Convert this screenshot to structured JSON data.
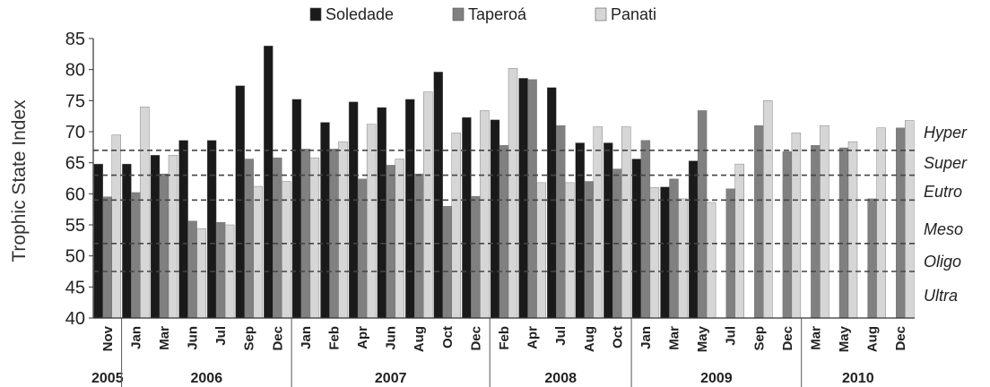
{
  "chart_data": {
    "type": "bar",
    "ylabel": "Trophic State Index",
    "ylim": [
      40,
      85
    ],
    "yticks": [
      40,
      45,
      50,
      55,
      60,
      65,
      70,
      75,
      80,
      85
    ],
    "legend_position": "top",
    "series": [
      {
        "name": "Soledade",
        "color": "#1a1a1a"
      },
      {
        "name": "Taperoá",
        "color": "#808080"
      },
      {
        "name": "Panati",
        "color": "#d6d6d6"
      }
    ],
    "categories": [
      {
        "label": "Nov",
        "year": "2005",
        "values": [
          64.8,
          59.5,
          69.5
        ]
      },
      {
        "label": "Jan",
        "year": "2006",
        "values": [
          64.8,
          60.2,
          74.0
        ]
      },
      {
        "label": "Mar",
        "year": "2006",
        "values": [
          66.2,
          63.2,
          66.2
        ]
      },
      {
        "label": "Jun",
        "year": "2006",
        "values": [
          68.6,
          55.6,
          54.4
        ]
      },
      {
        "label": "Jul",
        "year": "2006",
        "values": [
          68.6,
          55.4,
          55.0
        ]
      },
      {
        "label": "Sep",
        "year": "2006",
        "values": [
          77.4,
          65.6,
          61.2
        ]
      },
      {
        "label": "Dec",
        "year": "2006",
        "values": [
          83.8,
          65.8,
          62.0
        ]
      },
      {
        "label": "Jan",
        "year": "2007",
        "values": [
          75.2,
          67.2,
          65.8
        ]
      },
      {
        "label": "Feb",
        "year": "2007",
        "values": [
          71.5,
          67.2,
          68.4
        ]
      },
      {
        "label": "Apr",
        "year": "2007",
        "values": [
          74.8,
          62.4,
          71.2
        ]
      },
      {
        "label": "Jun",
        "year": "2007",
        "values": [
          73.9,
          64.6,
          65.6
        ]
      },
      {
        "label": "Aug",
        "year": "2007",
        "values": [
          75.2,
          63.2,
          76.4
        ]
      },
      {
        "label": "Oct",
        "year": "2007",
        "values": [
          79.6,
          58.0,
          69.8
        ]
      },
      {
        "label": "Dec",
        "year": "2007",
        "values": [
          72.3,
          59.6,
          73.4
        ]
      },
      {
        "label": "Feb",
        "year": "2008",
        "values": [
          71.9,
          67.8,
          80.2
        ]
      },
      {
        "label": "Apr",
        "year": "2008",
        "values": [
          78.6,
          78.4,
          61.8
        ]
      },
      {
        "label": "Jul",
        "year": "2008",
        "values": [
          77.1,
          71.0,
          61.8
        ]
      },
      {
        "label": "Aug",
        "year": "2008",
        "values": [
          68.2,
          62.0,
          70.8
        ]
      },
      {
        "label": "Oct",
        "year": "2008",
        "values": [
          68.2,
          64.0,
          70.8
        ]
      },
      {
        "label": "Jan",
        "year": "2009",
        "values": [
          65.6,
          68.6,
          61.0
        ]
      },
      {
        "label": "Mar",
        "year": "2009",
        "values": [
          61.1,
          62.4,
          59.2
        ]
      },
      {
        "label": "May",
        "year": "2009",
        "values": [
          65.3,
          73.4,
          58.6
        ]
      },
      {
        "label": "Jul",
        "year": "2009",
        "values": [
          null,
          60.8,
          64.8
        ]
      },
      {
        "label": "Sep",
        "year": "2009",
        "values": [
          null,
          71.0,
          75.0
        ]
      },
      {
        "label": "Dec",
        "year": "2009",
        "values": [
          null,
          66.8,
          69.8
        ]
      },
      {
        "label": "Mar",
        "year": "2010",
        "values": [
          null,
          67.8,
          71.0
        ]
      },
      {
        "label": "May",
        "year": "2010",
        "values": [
          null,
          67.4,
          68.4
        ]
      },
      {
        "label": "Aug",
        "year": "2010",
        "values": [
          null,
          59.2,
          70.6
        ]
      },
      {
        "label": "Dec",
        "year": "2010",
        "values": [
          null,
          70.6,
          71.8
        ]
      }
    ],
    "years": [
      {
        "label": "2005",
        "count": 1
      },
      {
        "label": "2006",
        "count": 6
      },
      {
        "label": "2007",
        "count": 7
      },
      {
        "label": "2008",
        "count": 5
      },
      {
        "label": "2009",
        "count": 6
      },
      {
        "label": "2010",
        "count": 4
      }
    ],
    "thresholds": [
      {
        "label": "Hyper",
        "value": 67.0
      },
      {
        "label": "Super",
        "value": 63.0
      },
      {
        "label": "Eutro",
        "value": 59.0
      },
      {
        "label": "Meso",
        "value": 52.0
      },
      {
        "label": "Oligo",
        "value": 47.5
      },
      {
        "label": "Ultra",
        "value": null
      }
    ]
  }
}
